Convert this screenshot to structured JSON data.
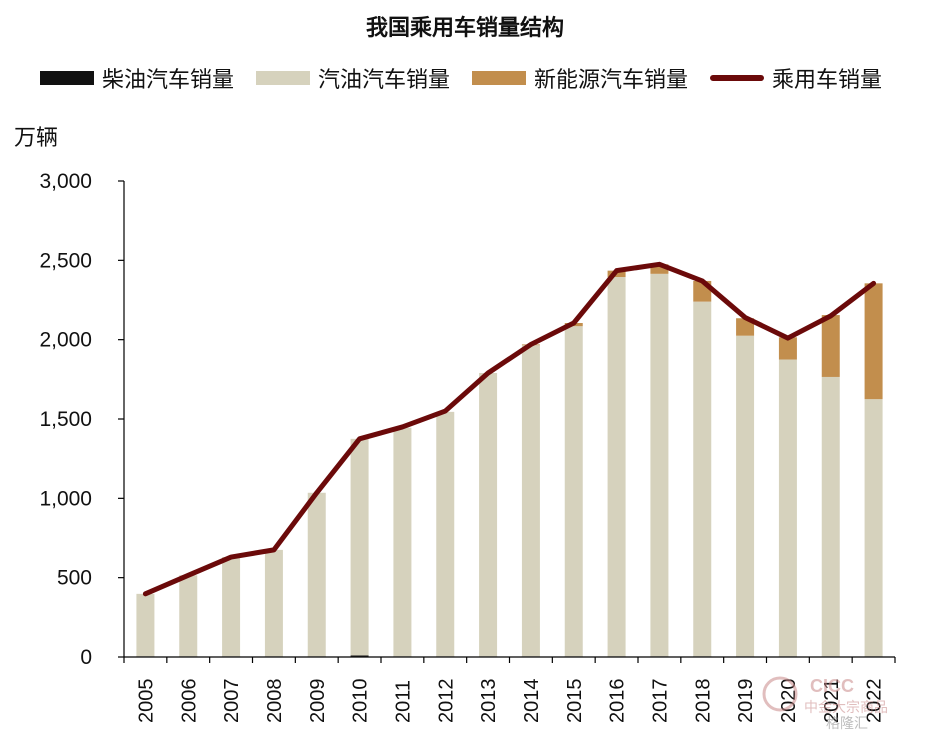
{
  "colors": {
    "diesel": "#111111",
    "gasoline": "#d6d2bd",
    "nev": "#c28e4d",
    "total_line": "#6b0a0a",
    "axis": "#000000"
  },
  "chart_data": {
    "type": "bar",
    "title": "我国乘用车销量结构",
    "ylabel": "万辆",
    "xlabel": "",
    "ylim": [
      0,
      3000
    ],
    "yticks": [
      0,
      500,
      1000,
      1500,
      2000,
      2500,
      3000
    ],
    "ytick_labels": [
      "0",
      "500",
      "1,000",
      "1,500",
      "2,000",
      "2,500",
      "3,000"
    ],
    "categories": [
      "2005",
      "2006",
      "2007",
      "2008",
      "2009",
      "2010",
      "2011",
      "2012",
      "2013",
      "2014",
      "2015",
      "2016",
      "2017",
      "2018",
      "2019",
      "2020",
      "2021",
      "2022"
    ],
    "stacked": true,
    "legend_position": "top",
    "grid": false,
    "series": [
      {
        "name": "柴油汽车销量",
        "kind": "bar",
        "values": [
          5,
          5,
          5,
          5,
          5,
          10,
          5,
          5,
          5,
          5,
          5,
          5,
          5,
          5,
          5,
          5,
          5,
          5
        ]
      },
      {
        "name": "汽油汽车销量",
        "kind": "bar",
        "values": [
          393,
          510,
          625,
          670,
          1030,
          1365,
          1440,
          1540,
          1785,
          1960,
          2080,
          2390,
          2410,
          2235,
          2020,
          1870,
          1760,
          1620
        ]
      },
      {
        "name": "新能源汽车销量",
        "kind": "bar",
        "values": [
          0,
          0,
          0,
          0,
          0,
          0,
          0,
          0,
          0,
          5,
          20,
          40,
          60,
          130,
          110,
          140,
          390,
          730
        ]
      },
      {
        "name": "乘用车销量",
        "kind": "line",
        "values": [
          398,
          515,
          630,
          675,
          1035,
          1375,
          1450,
          1550,
          1790,
          1970,
          2105,
          2435,
          2475,
          2370,
          2140,
          2010,
          2150,
          2355
        ]
      }
    ]
  },
  "watermark": {
    "brand_text": "CICC",
    "sub_text": "中金大宗商品",
    "source_text": "格隆汇"
  }
}
